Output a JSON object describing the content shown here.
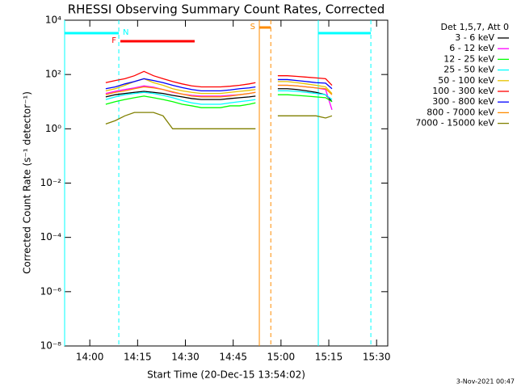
{
  "chart_data": {
    "type": "line",
    "title": "RHESSI Observing Summary Count Rates, Corrected",
    "x_label": "Start Time (20-Dec-15 13:54:02)",
    "y_label": "Corrected Count Rate (s⁻¹ detector⁻¹)",
    "footer": "3-Nov-2021 00:47",
    "legend_title": "Det 1,5,7, Att 0",
    "legend": "right",
    "log_y": true,
    "xlim": [
      832.1,
      933.5
    ],
    "ylim": [
      1e-08,
      10000.0
    ],
    "xticks": [
      {
        "value": 840,
        "label": "14:00"
      },
      {
        "value": 855,
        "label": "14:15"
      },
      {
        "value": 870,
        "label": "14:30"
      },
      {
        "value": 885,
        "label": "14:45"
      },
      {
        "value": 900,
        "label": "15:00"
      },
      {
        "value": 915,
        "label": "15:15"
      },
      {
        "value": 930,
        "label": "15:30"
      }
    ],
    "yticks": [
      {
        "value": 1e-08,
        "label": "10⁻⁸"
      },
      {
        "value": 1e-06,
        "label": "10⁻⁶"
      },
      {
        "value": 0.0001,
        "label": "10⁻⁴"
      },
      {
        "value": 0.01,
        "label": "10⁻²"
      },
      {
        "value": 1,
        "label": "10⁰"
      },
      {
        "value": 100,
        "label": "10²"
      },
      {
        "value": 10000,
        "label": "10⁴"
      }
    ],
    "intervals": [
      {
        "label": "N",
        "color": "#00ffff",
        "x": [
          832.1,
          849.1
        ],
        "lines": true
      },
      {
        "label": "F",
        "color": "#ff0000",
        "x": [
          849.6,
          872.9
        ],
        "lines": false
      },
      {
        "label": "S",
        "color": "#ff8c00",
        "x": [
          893.2,
          896.8
        ],
        "lines": true
      },
      {
        "color": "#00ffff",
        "x": [
          911.7,
          928.2
        ],
        "lines": true
      }
    ],
    "x": [
      845,
      848,
      851,
      854,
      857,
      860,
      863,
      866,
      869,
      872,
      875,
      878,
      881,
      884,
      887,
      890,
      892,
      895,
      899,
      902,
      905,
      908,
      911,
      914,
      916
    ],
    "series": [
      {
        "name": "3 - 6 keV",
        "color": "#000000",
        "values": [
          15,
          18,
          20,
          22,
          24,
          22,
          20,
          17,
          15,
          13,
          12,
          12,
          12,
          13,
          14,
          15,
          16,
          null,
          30,
          30,
          28,
          25,
          22,
          18,
          10
        ]
      },
      {
        "name": "6 - 12 keV",
        "color": "#ff00ff",
        "values": [
          20,
          24,
          28,
          32,
          38,
          34,
          28,
          22,
          19,
          17,
          16,
          16,
          16,
          17,
          18,
          20,
          22,
          null,
          40,
          40,
          38,
          35,
          32,
          28,
          5
        ]
      },
      {
        "name": "12 - 25 keV",
        "color": "#00ff00",
        "values": [
          8,
          10,
          12,
          14,
          16,
          14,
          12,
          10,
          8,
          7,
          6,
          6,
          6,
          7,
          7,
          8,
          9,
          null,
          18,
          18,
          17,
          16,
          15,
          14,
          10
        ]
      },
      {
        "name": "25 - 50 keV",
        "color": "#00ffff",
        "values": [
          12,
          15,
          18,
          20,
          22,
          20,
          17,
          14,
          11,
          9,
          8,
          8,
          8,
          9,
          10,
          11,
          12,
          null,
          25,
          25,
          24,
          22,
          20,
          18,
          12
        ]
      },
      {
        "name": "50 - 100 keV",
        "color": "#e6c200",
        "values": [
          25,
          30,
          40,
          55,
          70,
          50,
          40,
          30,
          25,
          22,
          20,
          20,
          20,
          22,
          24,
          26,
          28,
          null,
          55,
          55,
          50,
          45,
          40,
          35,
          20
        ]
      },
      {
        "name": "100 - 300 keV",
        "color": "#ff0000",
        "values": [
          50,
          60,
          70,
          90,
          130,
          90,
          70,
          55,
          45,
          38,
          35,
          35,
          35,
          37,
          40,
          45,
          50,
          null,
          90,
          90,
          85,
          80,
          75,
          70,
          40
        ]
      },
      {
        "name": "300 - 800 keV",
        "color": "#0000ff",
        "values": [
          30,
          35,
          45,
          55,
          70,
          60,
          50,
          40,
          33,
          28,
          25,
          25,
          25,
          27,
          30,
          32,
          35,
          null,
          65,
          65,
          60,
          55,
          50,
          48,
          30
        ]
      },
      {
        "name": "800 - 7000 keV",
        "color": "#ff8c00",
        "values": [
          18,
          22,
          25,
          30,
          35,
          32,
          28,
          23,
          19,
          16,
          15,
          15,
          15,
          16,
          18,
          20,
          22,
          null,
          40,
          40,
          38,
          35,
          32,
          30,
          18
        ]
      },
      {
        "name": "7000 - 15000 keV",
        "color": "#808000",
        "values": [
          1.5,
          2,
          3,
          4,
          4,
          4,
          3,
          1,
          1,
          1,
          1,
          1,
          1,
          1,
          1,
          1,
          1,
          null,
          3,
          3,
          3,
          3,
          3,
          2.5,
          3
        ]
      }
    ]
  }
}
